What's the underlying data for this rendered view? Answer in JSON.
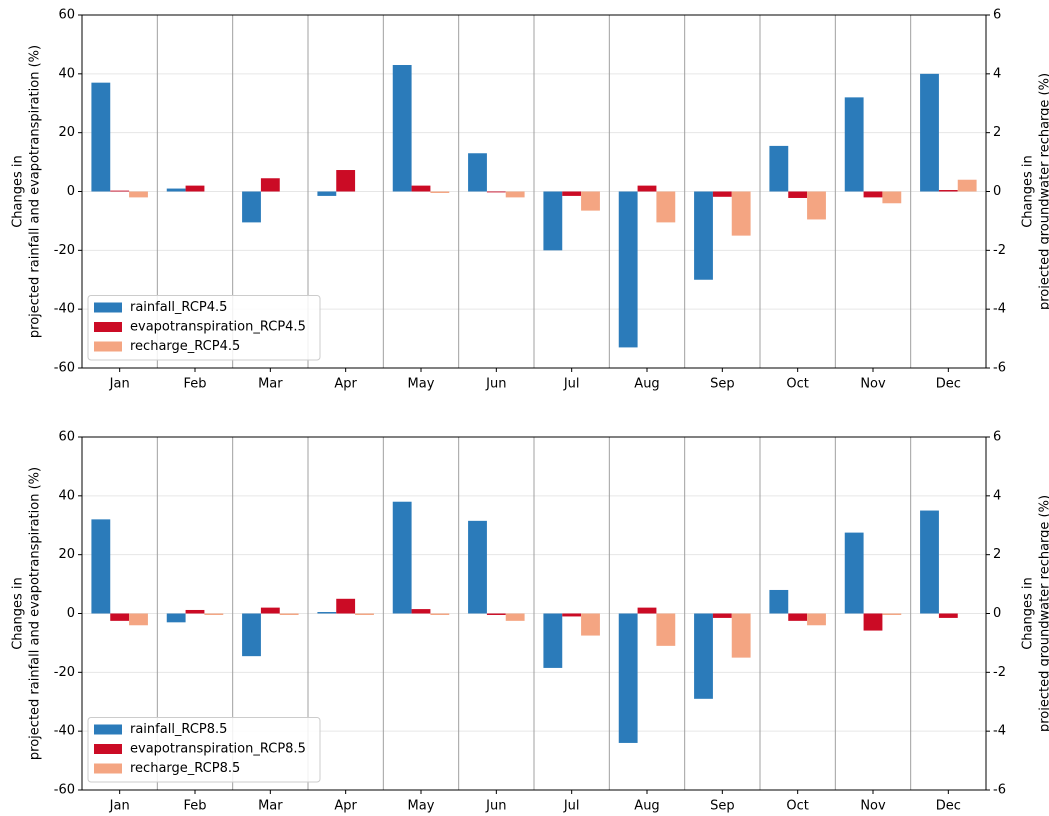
{
  "chart_data": [
    {
      "type": "bar",
      "categories": [
        "Jan",
        "Feb",
        "Mar",
        "Apr",
        "May",
        "Jun",
        "Jul",
        "Aug",
        "Sep",
        "Oct",
        "Nov",
        "Dec"
      ],
      "ylabel": [
        "Changes in",
        "projected rainfall and evapotranspiration (%)"
      ],
      "y2label": [
        "Changes in",
        "projected groundwater recharge (%)"
      ],
      "ylim": [
        -60,
        60
      ],
      "yticks": [
        -60,
        -40,
        -20,
        0,
        20,
        40,
        60
      ],
      "y2lim": [
        -6,
        6
      ],
      "y2ticks": [
        -6,
        -4,
        -2,
        0,
        2,
        4,
        6
      ],
      "grid": true,
      "legend": "lower left",
      "series": [
        {
          "name": "rainfall_RCP4.5",
          "color": "#2b7bba",
          "values": [
            37,
            1,
            -10.5,
            -1.5,
            43,
            13,
            -20,
            -53,
            -30,
            15.5,
            32,
            40
          ]
        },
        {
          "name": "evapotranspiration_RCP4.5",
          "color": "#cb0b25",
          "values": [
            0.3,
            2,
            4.5,
            7.3,
            2,
            -0.3,
            -1.5,
            2,
            -1.8,
            -2.2,
            -2,
            0.5
          ]
        },
        {
          "name": "recharge_RCP4.5",
          "color": "#f4a582",
          "axis": "y2",
          "values": [
            -0.2,
            0,
            0,
            0,
            -0.05,
            -0.2,
            -0.65,
            -1.05,
            -1.5,
            -0.95,
            -0.4,
            0.4
          ]
        }
      ]
    },
    {
      "type": "bar",
      "categories": [
        "Jan",
        "Feb",
        "Mar",
        "Apr",
        "May",
        "Jun",
        "Jul",
        "Aug",
        "Sep",
        "Oct",
        "Nov",
        "Dec"
      ],
      "ylabel": [
        "Changes in",
        "projected rainfall and evapotranspiration (%)"
      ],
      "y2label": [
        "Changes in",
        "projected groundwater recharge (%)"
      ],
      "ylim": [
        -60,
        60
      ],
      "yticks": [
        -60,
        -40,
        -20,
        0,
        20,
        40,
        60
      ],
      "y2lim": [
        -6,
        6
      ],
      "y2ticks": [
        -6,
        -4,
        -2,
        0,
        2,
        4,
        6
      ],
      "grid": true,
      "legend": "lower left",
      "series": [
        {
          "name": "rainfall_RCP8.5",
          "color": "#2b7bba",
          "values": [
            32,
            -3,
            -14.5,
            0.5,
            38,
            31.5,
            -18.5,
            -44,
            -29,
            8,
            27.5,
            35
          ]
        },
        {
          "name": "evapotranspiration_RCP8.5",
          "color": "#cb0b25",
          "values": [
            -2.5,
            1.2,
            2,
            5,
            1.5,
            -0.5,
            -1,
            2,
            -1.5,
            -2.5,
            -5.8,
            -1.5
          ]
        },
        {
          "name": "recharge_RCP8.5",
          "color": "#f4a582",
          "axis": "y2",
          "values": [
            -0.4,
            -0.05,
            -0.05,
            -0.05,
            -0.05,
            -0.25,
            -0.75,
            -1.1,
            -1.5,
            -0.4,
            -0.05,
            0
          ]
        }
      ]
    }
  ]
}
